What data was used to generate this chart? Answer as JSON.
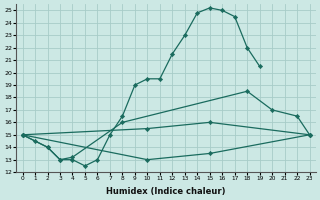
{
  "xlabel": "Humidex (Indice chaleur)",
  "bg_color": "#cce8e4",
  "line_color": "#1a6b5e",
  "grid_color": "#a8ccc8",
  "xlim": [
    -0.5,
    23.5
  ],
  "ylim": [
    12,
    25.5
  ],
  "xticks": [
    0,
    1,
    2,
    3,
    4,
    5,
    6,
    7,
    8,
    9,
    10,
    11,
    12,
    13,
    14,
    15,
    16,
    17,
    18,
    19,
    20,
    21,
    22,
    23
  ],
  "yticks": [
    12,
    13,
    14,
    15,
    16,
    17,
    18,
    19,
    20,
    21,
    22,
    23,
    24,
    25
  ],
  "lines": [
    {
      "x": [
        0,
        1,
        2,
        3,
        4,
        5,
        6,
        7,
        8,
        9,
        10,
        11,
        12,
        13,
        14,
        15,
        16,
        17,
        18,
        19
      ],
      "y": [
        15,
        14.5,
        14,
        13,
        13,
        12.5,
        13,
        15,
        16.5,
        19,
        19.5,
        19.5,
        21.5,
        23,
        24.8,
        25.2,
        25.0,
        24.5,
        22,
        20.5
      ]
    },
    {
      "x": [
        0,
        2,
        3,
        4,
        8,
        18,
        20,
        22,
        23
      ],
      "y": [
        15,
        14,
        13,
        13.2,
        16,
        18.5,
        17,
        16.5,
        15
      ]
    },
    {
      "x": [
        0,
        10,
        15,
        23
      ],
      "y": [
        15,
        15.5,
        16,
        15
      ]
    },
    {
      "x": [
        0,
        10,
        15,
        23
      ],
      "y": [
        15,
        13,
        13.5,
        15
      ]
    }
  ]
}
